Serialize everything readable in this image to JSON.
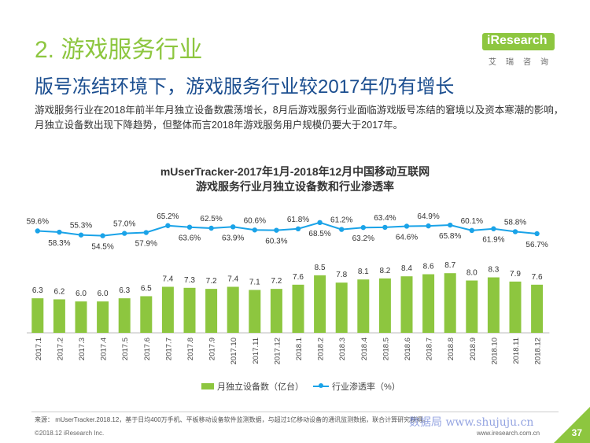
{
  "section_title": "2. 游戏服务行业",
  "logo": {
    "text": "iResearch",
    "sub": "艾瑞咨询"
  },
  "headline": "版号冻结环境下，游戏服务行业较2017年仍有增长",
  "intro": "游戏服务行业在2018年前半年月独立设备数震荡增长，8月后游戏服务行业面临游戏版号冻结的窘境以及资本寒潮的影响，月独立设备数出现下降趋势，但整体而言2018年游戏服务用户规模仍要大于2017年。",
  "chart_data": {
    "type": "bar",
    "title": "mUserTracker-2017年1月-2018年12月中国移动互联网",
    "subtitle": "游戏服务行业月独立设备数和行业渗透率",
    "categories": [
      "2017.1",
      "2017.2",
      "2017.3",
      "2017.4",
      "2017.5",
      "2017.6",
      "2017.7",
      "2017.8",
      "2017.9",
      "2017.10",
      "2017.11",
      "2017.12",
      "2018.1",
      "2018.2",
      "2018.3",
      "2018.4",
      "2018.5",
      "2018.6",
      "2018.7",
      "2018.8",
      "2018.9",
      "2018.10",
      "2018.11",
      "2018.12"
    ],
    "series": [
      {
        "name": "月独立设备数（亿台）",
        "type": "bar",
        "color": "#8dc63f",
        "values": [
          6.3,
          6.2,
          6.0,
          6.0,
          6.3,
          6.5,
          7.4,
          7.3,
          7.2,
          7.4,
          7.1,
          7.2,
          7.6,
          8.5,
          7.8,
          8.1,
          8.2,
          8.4,
          8.6,
          8.7,
          8.0,
          8.3,
          7.9,
          7.6
        ],
        "labels": [
          "6.3",
          "6.2",
          "6.0",
          "6.0",
          "6.3",
          "6.5",
          "7.4",
          "7.3",
          "7.2",
          "7.4",
          "7.1",
          "7.2",
          "7.6",
          "8.5",
          "7.8",
          "8.1",
          "8.2",
          "8.4",
          "8.6",
          "8.7",
          "8.0",
          "8.3",
          "7.9",
          "7.6"
        ]
      },
      {
        "name": "行业渗透率（%）",
        "type": "line",
        "color": "#1aa3e8",
        "values": [
          59.6,
          58.3,
          55.3,
          54.5,
          57.0,
          57.9,
          65.2,
          63.6,
          62.5,
          63.9,
          60.6,
          60.3,
          61.8,
          68.5,
          61.2,
          63.2,
          63.4,
          64.6,
          64.9,
          65.8,
          60.1,
          61.9,
          58.8,
          56.7
        ],
        "labels": [
          "59.6%",
          "58.3%",
          "55.3%",
          "54.5%",
          "57.0%",
          "57.9%",
          "65.2%",
          "63.6%",
          "62.5%",
          "63.9%",
          "60.6%",
          "60.3%",
          "61.8%",
          "68.5%",
          "61.2%",
          "63.2%",
          "63.4%",
          "64.6%",
          "64.9%",
          "65.8%",
          "60.1%",
          "61.9%",
          "58.8%",
          "56.7%"
        ],
        "label_positions": [
          "above",
          "below",
          "above",
          "below",
          "above",
          "below",
          "above",
          "below",
          "above",
          "below",
          "above",
          "below",
          "above",
          "below",
          "above",
          "below",
          "above",
          "below",
          "above",
          "below",
          "above",
          "below",
          "above",
          "below"
        ]
      }
    ],
    "legend": "bottom"
  },
  "source": "来源：  mUserTracker.2018.12，基于日均400万手机、平板移动设备软件监测数据，与超过1亿移动设备的通讯监测数据，联合计算研究获得。",
  "copyright": "©2018.12 iResearch Inc.",
  "website": "www.iresearch.com.cn",
  "page_number": "37",
  "watermark": "数据局  www.shujuju.cn"
}
